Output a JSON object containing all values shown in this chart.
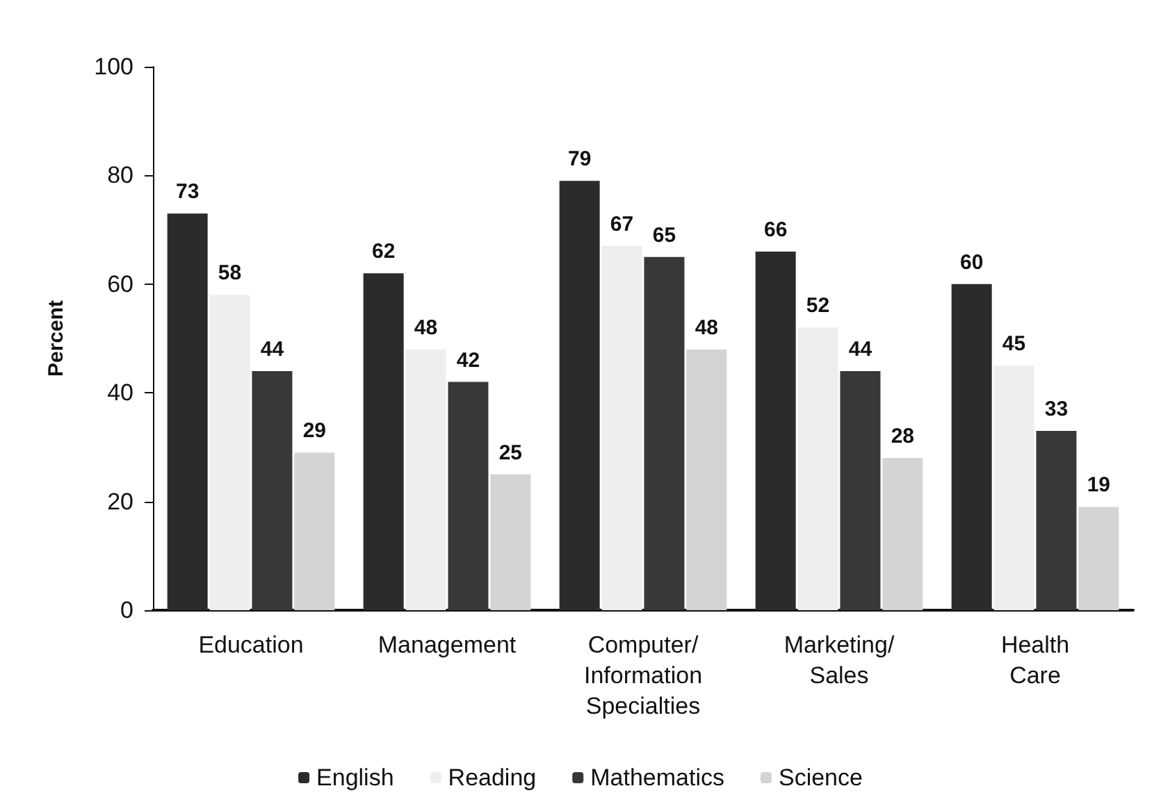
{
  "chart_data": {
    "type": "bar",
    "ylabel": "Percent",
    "categories": [
      "Education",
      "Management",
      "Computer/\nInformation\nSpecialties",
      "Marketing/\nSales",
      "Health\nCare"
    ],
    "series": [
      {
        "name": "English",
        "color": "#2b2b2b",
        "values": [
          73,
          62,
          79,
          66,
          60
        ]
      },
      {
        "name": "Reading",
        "color": "#eeeeee",
        "values": [
          58,
          48,
          67,
          52,
          45
        ]
      },
      {
        "name": "Mathematics",
        "color": "#383838",
        "values": [
          44,
          42,
          65,
          44,
          33
        ]
      },
      {
        "name": "Science",
        "color": "#d4d4d4",
        "values": [
          29,
          25,
          48,
          28,
          19
        ]
      }
    ],
    "ylim": [
      0,
      100
    ],
    "yticks": [
      0,
      20,
      40,
      60,
      80,
      100
    ],
    "grid": false,
    "legend": "bottom",
    "data_labels": true
  }
}
